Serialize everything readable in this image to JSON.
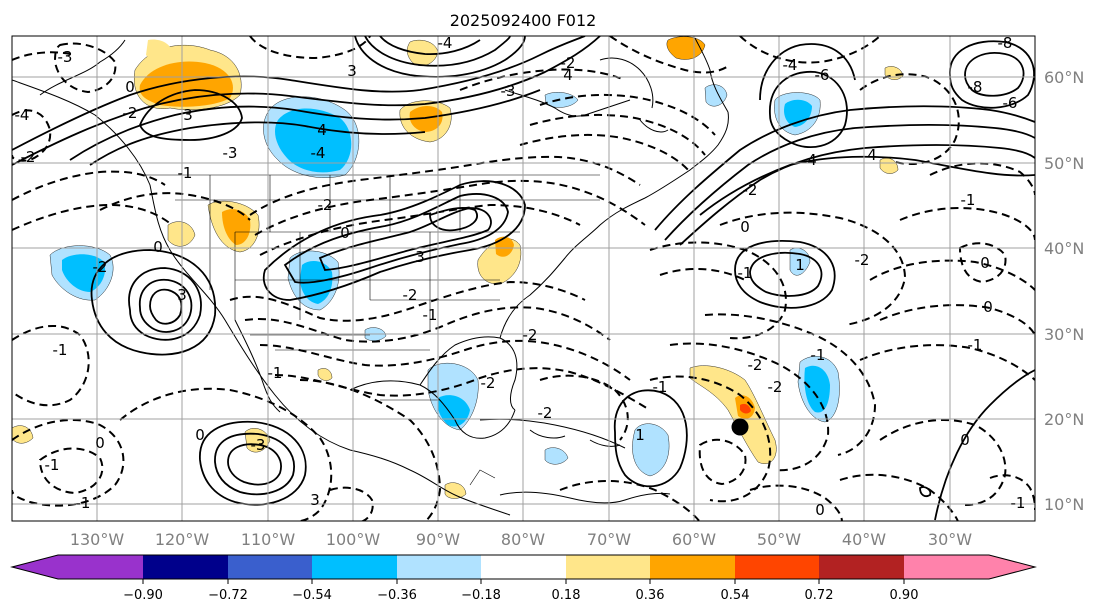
{
  "title": "2025092400 F012",
  "lat_labels": [
    "60°N",
    "50°N",
    "40°N",
    "30°N",
    "20°N",
    "10°N"
  ],
  "lon_labels": [
    "130°W",
    "120°W",
    "110°W",
    "100°W",
    "90°W",
    "80°W",
    "70°W",
    "60°W",
    "50°W",
    "40°W",
    "30°W"
  ],
  "colorbar": {
    "ticks": [
      "−0.90",
      "−0.72",
      "−0.54",
      "−0.36",
      "−0.18",
      "0.18",
      "0.36",
      "0.54",
      "0.72",
      "0.90"
    ],
    "colors": [
      "#9932cc",
      "#00008b",
      "#3a5fcd",
      "#00bfff",
      "#b0e2ff",
      "#ffffff",
      "#ffe68a",
      "#ffa500",
      "#ff4500",
      "#b22222",
      "#ff82ab"
    ]
  },
  "contour_labels": [
    "-3",
    "3",
    "3",
    "4",
    "-3",
    "4",
    "-4",
    "-4",
    "4",
    "-2",
    "-4",
    "-3",
    "-2",
    "-1",
    "0",
    "3",
    "3",
    "0",
    "-2",
    "-1",
    "-1",
    "0",
    "-3",
    "-1",
    "0",
    "3",
    "-1",
    "-2",
    "-2",
    "1",
    "0",
    "-1",
    "-2",
    "1",
    "0",
    "-1",
    "-1",
    "-1",
    "-2",
    "-4",
    "0",
    "-2",
    "-2",
    "-1",
    "0",
    "-2",
    "-6",
    "-8",
    "-8",
    "-6",
    "4",
    "-2",
    "-2",
    "-2",
    "0",
    "-1",
    "0",
    "-1"
  ],
  "accent_colors": {
    "contour": "#000000",
    "grid": "#a0a0a0",
    "marker": "#000000"
  }
}
